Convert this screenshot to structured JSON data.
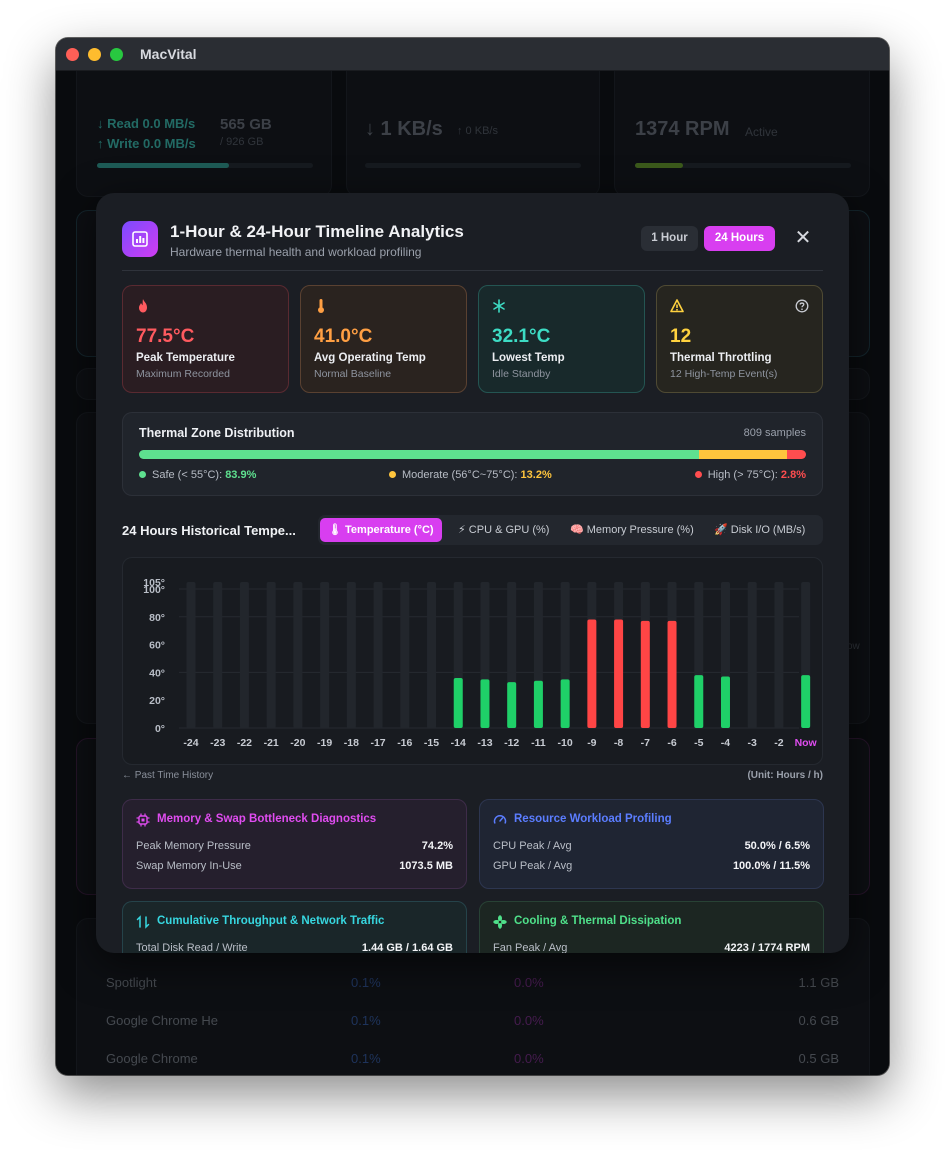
{
  "app": {
    "title": "MacVital"
  },
  "background": {
    "disk": {
      "read": "↓ Read 0.0 MB/s",
      "write": "↑ Write 0.0 MB/s",
      "used": "565 GB",
      "total": "/ 926 GB",
      "fill": 0.61
    },
    "network": {
      "down": "↓ 1 KB/s",
      "up": "↑ 0 KB/s"
    },
    "fan": {
      "rpm": "1374 RPM",
      "status": "Active",
      "fill": 0.22
    },
    "chart_now_label": "ow",
    "processes": [
      {
        "name": "Spotlight",
        "cpu": "0.1%",
        "gpu": "0.0%",
        "mem": "1.1 GB"
      },
      {
        "name": "Google Chrome He",
        "cpu": "0.1%",
        "gpu": "0.0%",
        "mem": "0.6 GB"
      },
      {
        "name": "Google Chrome",
        "cpu": "0.1%",
        "gpu": "0.0%",
        "mem": "0.5 GB"
      }
    ]
  },
  "modal": {
    "title": "1-Hour & 24-Hour Timeline Analytics",
    "subtitle": "Hardware thermal health and workload profiling",
    "range_options": [
      "1 Hour",
      "24 Hours"
    ],
    "selected_range": "24 Hours",
    "close_glyph": "✕",
    "stats": [
      {
        "value": "77.5°C",
        "label": "Peak Temperature",
        "caption": "Maximum Recorded",
        "icon": "fire-icon",
        "color": "#ff5a5f"
      },
      {
        "value": "41.0°C",
        "label": "Avg Operating Temp",
        "caption": "Normal Baseline",
        "icon": "thermometer-icon",
        "color": "#ff9f43"
      },
      {
        "value": "32.1°C",
        "label": "Lowest Temp",
        "caption": "Idle Standby",
        "icon": "snowflake-icon",
        "color": "#3ddcc4"
      },
      {
        "value": "12",
        "label": "Thermal Throttling",
        "caption": "12 High-Temp Event(s)",
        "icon": "warning-icon",
        "color": "#ffd23f"
      }
    ],
    "zone": {
      "title": "Thermal Zone Distribution",
      "samples": "809 samples",
      "segments": [
        {
          "label": "Safe (< 55°C): ",
          "pct": "83.9%",
          "value": 83.9,
          "color": "#5ee08f"
        },
        {
          "label": "Moderate (56°C~75°C): ",
          "pct": "13.2%",
          "value": 13.2,
          "color": "#ffc53d"
        },
        {
          "label": "High (> 75°C): ",
          "pct": "2.8%",
          "value": 2.8,
          "color": "#ff4d4f"
        }
      ]
    },
    "history": {
      "title": "24 Hours Historical Tempe...",
      "tabs": [
        {
          "icon": "🌡",
          "label": "Temperature (°C)"
        },
        {
          "icon": "⚡",
          "label": "CPU & GPU (%)"
        },
        {
          "icon": "🧠",
          "label": "Memory Pressure (%)"
        },
        {
          "icon": "🚀",
          "label": "Disk I/O (MB/s)"
        }
      ],
      "active_tab": 0,
      "footer_left": "← Past Time History",
      "footer_right": "(Unit: Hours / h)"
    },
    "diagnostics": [
      {
        "title": "Memory & Swap Bottleneck Diagnostics",
        "color": "#e04cf0",
        "icon": "chip-icon",
        "rows": [
          {
            "k": "Peak Memory Pressure",
            "v": "74.2%"
          },
          {
            "k": "Swap Memory In-Use",
            "v": "1073.5 MB"
          }
        ]
      },
      {
        "title": "Resource Workload Profiling",
        "color": "#5b7dff",
        "icon": "gauge-icon",
        "rows": [
          {
            "k": "CPU Peak / Avg",
            "v": "50.0% / 6.5%"
          },
          {
            "k": "GPU Peak / Avg",
            "v": "100.0% / 11.5%"
          }
        ]
      },
      {
        "title": "Cumulative Throughput & Network Traffic",
        "color": "#37d7e0",
        "icon": "transfer-icon",
        "rows": [
          {
            "k": "Total Disk Read / Write",
            "v": "1.44 GB / 1.64 GB"
          }
        ]
      },
      {
        "title": "Cooling & Thermal Dissipation",
        "color": "#4fe08a",
        "icon": "fan-icon",
        "rows": [
          {
            "k": "Fan Peak / Avg",
            "v": "4223 / 1774 RPM"
          }
        ]
      }
    ]
  },
  "chart_data": {
    "type": "bar",
    "title": "",
    "xlabel": "",
    "ylabel": "",
    "categories": [
      "-24",
      "-23",
      "-22",
      "-21",
      "-20",
      "-19",
      "-18",
      "-17",
      "-16",
      "-15",
      "-14",
      "-13",
      "-12",
      "-11",
      "-10",
      "-9",
      "-8",
      "-7",
      "-6",
      "-5",
      "-4",
      "-3",
      "-2",
      "Now"
    ],
    "values": [
      null,
      null,
      null,
      null,
      null,
      null,
      null,
      null,
      null,
      null,
      36,
      35,
      33,
      34,
      35,
      78,
      78,
      77,
      77,
      38,
      37,
      null,
      null,
      38
    ],
    "ylim": [
      0,
      105
    ],
    "yticks": [
      "0°",
      "20°",
      "40°",
      "60°",
      "80°",
      "100°",
      "105°"
    ],
    "ytick_values": [
      0,
      20,
      40,
      60,
      80,
      100,
      105
    ],
    "threshold": 75,
    "colors": {
      "normal": "#1fd068",
      "high": "#ff4545",
      "empty": "#22262c",
      "now_label": "#e04cf0"
    }
  }
}
